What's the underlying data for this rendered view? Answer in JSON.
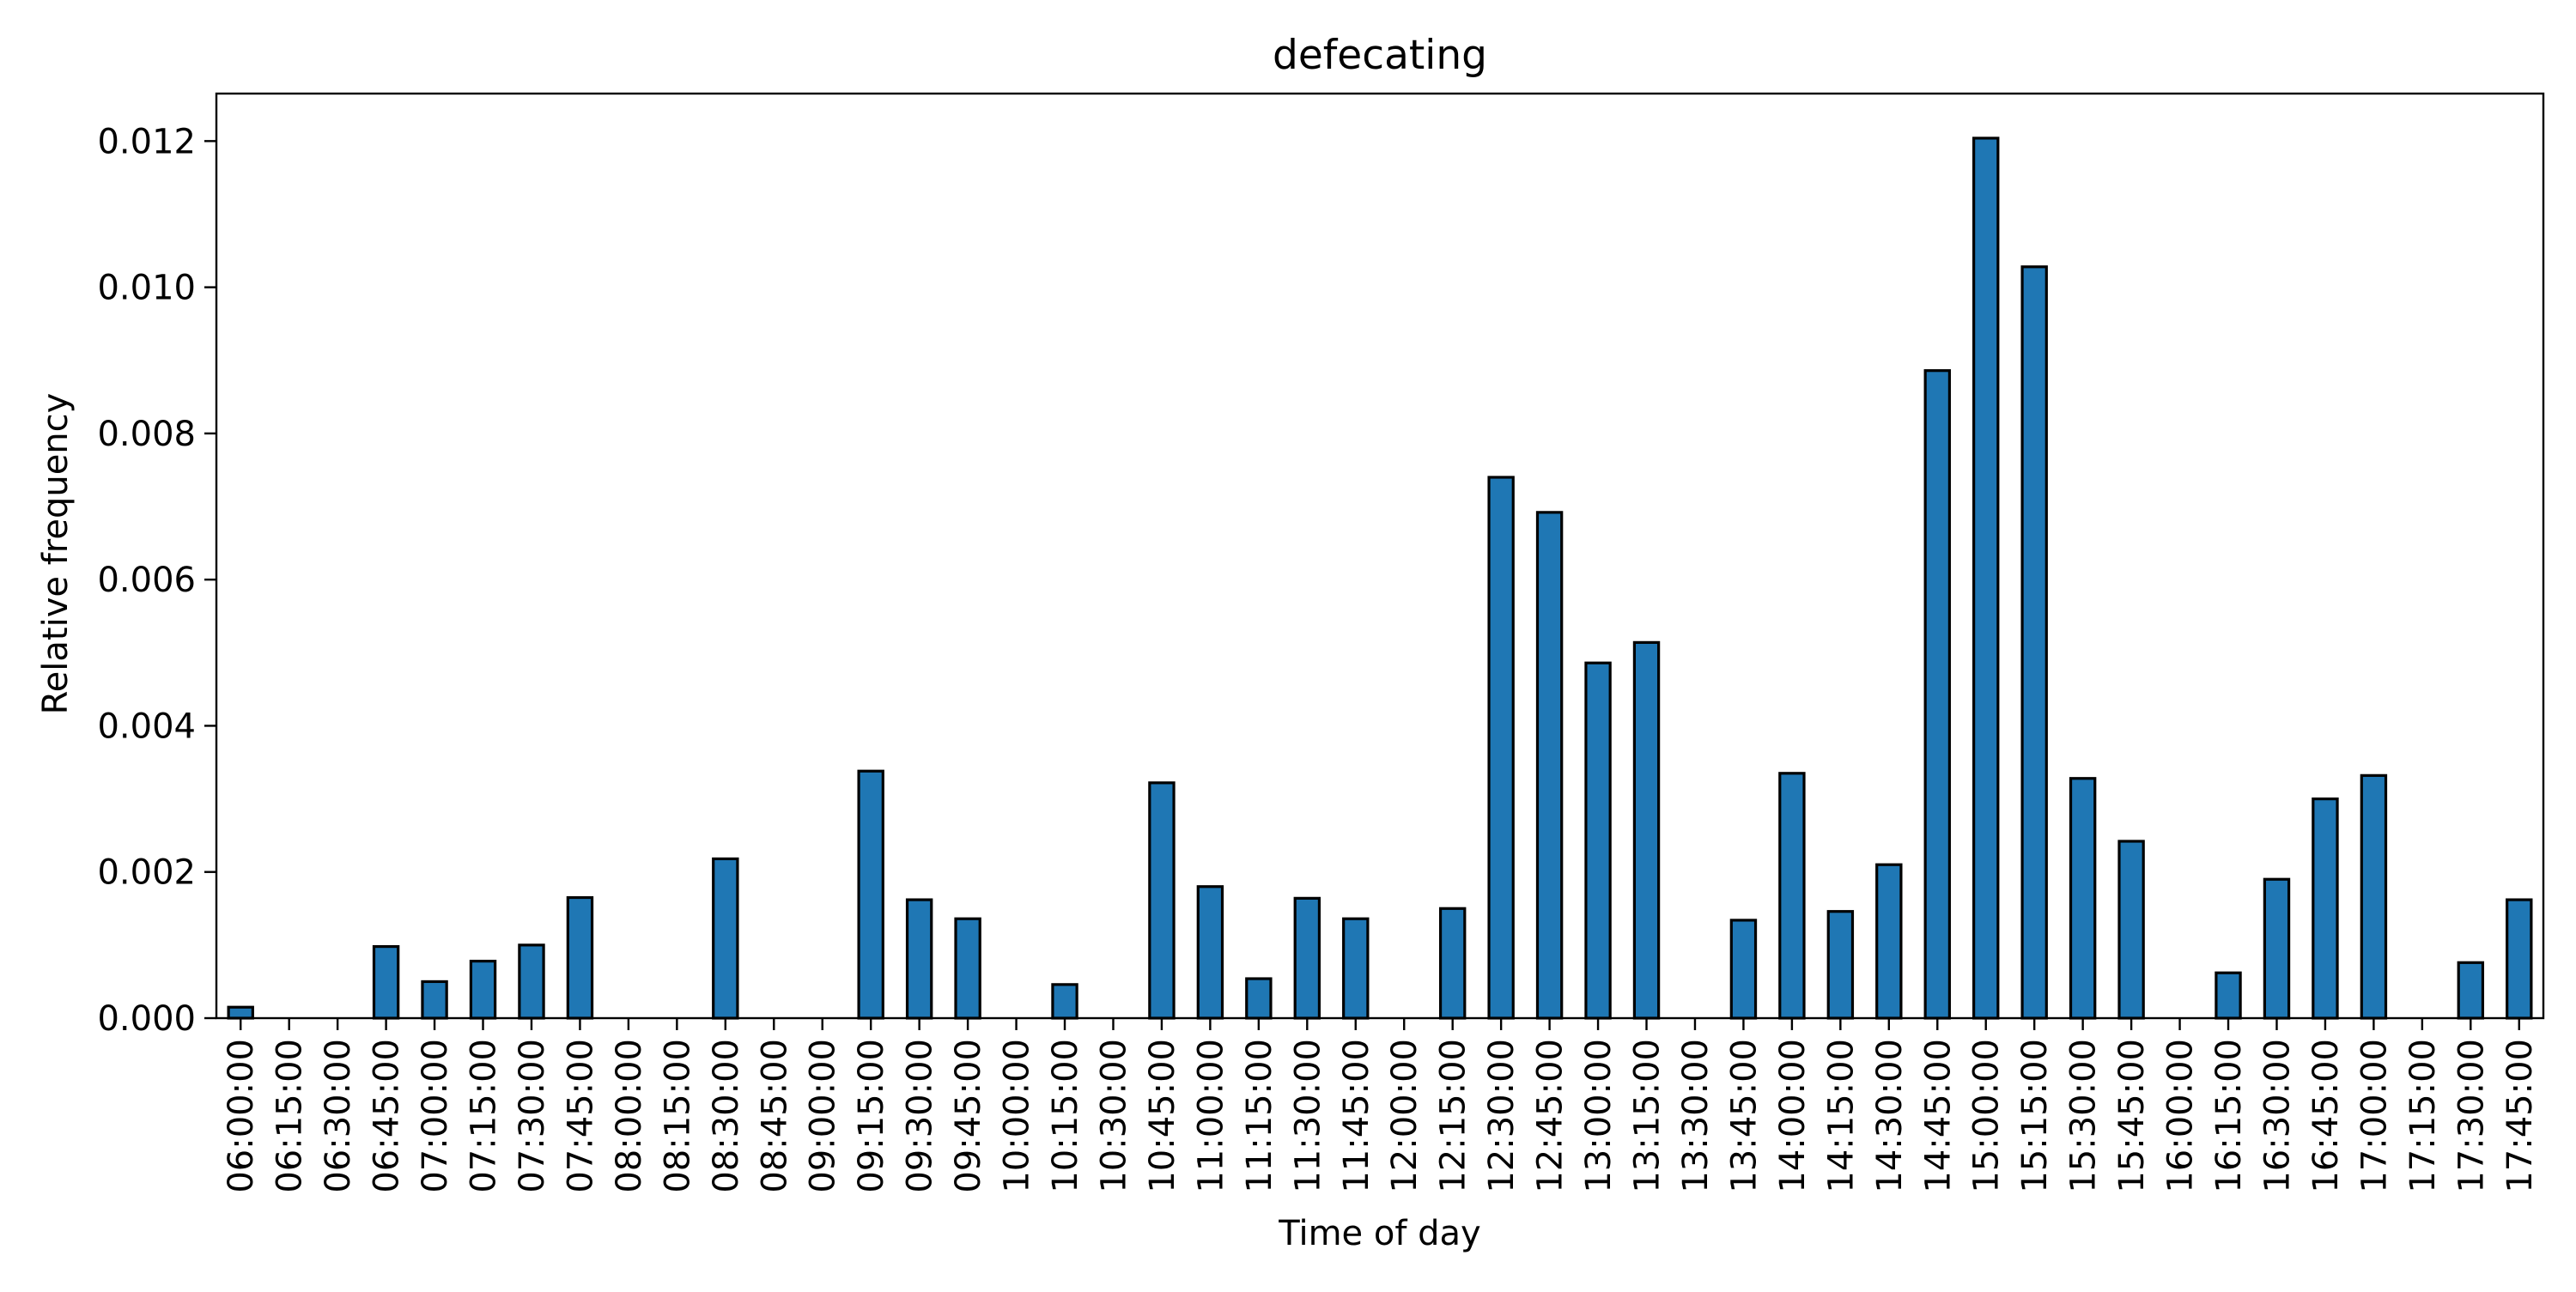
{
  "chart_data": {
    "type": "bar",
    "title": "defecating",
    "xlabel": "Time of day",
    "ylabel": "Relative frequency",
    "ylim": [
      0,
      0.01265
    ],
    "yticks": [
      "0.000",
      "0.002",
      "0.004",
      "0.006",
      "0.008",
      "0.010",
      "0.012"
    ],
    "ytick_values": [
      0,
      0.002,
      0.004,
      0.006,
      0.008,
      0.01,
      0.012
    ],
    "grid": false,
    "bar_color": "#1f77b4",
    "edge_color": "#000000",
    "categories": [
      "06:00:00",
      "06:15:00",
      "06:30:00",
      "06:45:00",
      "07:00:00",
      "07:15:00",
      "07:30:00",
      "07:45:00",
      "08:00:00",
      "08:15:00",
      "08:30:00",
      "08:45:00",
      "09:00:00",
      "09:15:00",
      "09:30:00",
      "09:45:00",
      "10:00:00",
      "10:15:00",
      "10:30:00",
      "10:45:00",
      "11:00:00",
      "11:15:00",
      "11:30:00",
      "11:45:00",
      "12:00:00",
      "12:15:00",
      "12:30:00",
      "12:45:00",
      "13:00:00",
      "13:15:00",
      "13:30:00",
      "13:45:00",
      "14:00:00",
      "14:15:00",
      "14:30:00",
      "14:45:00",
      "15:00:00",
      "15:15:00",
      "15:30:00",
      "15:45:00",
      "16:00:00",
      "16:15:00",
      "16:30:00",
      "16:45:00",
      "17:00:00",
      "17:15:00",
      "17:30:00",
      "17:45:00"
    ],
    "values": [
      0.00015,
      0,
      0,
      0.00098,
      0.0005,
      0.00078,
      0.001,
      0.00165,
      0,
      0,
      0.00218,
      0,
      0,
      0.00338,
      0.00162,
      0.00136,
      0,
      0.00046,
      0,
      0.00322,
      0.0018,
      0.00054,
      0.00164,
      0.00136,
      0,
      0.0015,
      0.0074,
      0.00692,
      0.00486,
      0.00514,
      0,
      0.00134,
      0.00335,
      0.00146,
      0.0021,
      0.00886,
      0.01204,
      0.01028,
      0.00328,
      0.00242,
      0,
      0.00062,
      0.0019,
      0.003,
      0.00332,
      0,
      0.00076,
      0.00162
    ]
  }
}
